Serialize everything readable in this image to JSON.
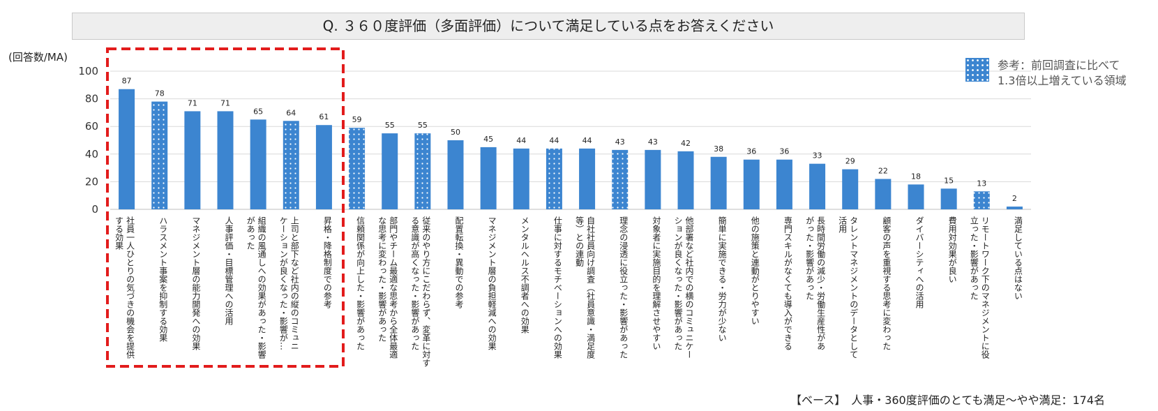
{
  "title": "Q. ３６０度評価（多面評価）について満足している点をお答えください",
  "unit_label": "(回答数/MA)",
  "legend": {
    "line1": "参考：前回調査に比べて",
    "line2": "1.3倍以上増えている領域"
  },
  "base_note": "【ベース】　人事・360度評価のとても満足〜やや満足：174名",
  "colors": {
    "bar": "#3c85d0",
    "highlight_border": "#e21c1c",
    "grid": "#d9d9d9"
  },
  "chart_data": {
    "type": "bar",
    "ylim": [
      0,
      100
    ],
    "yticks": [
      0,
      20,
      40,
      60,
      80,
      100
    ],
    "grid": true,
    "categories": [
      [
        "社員一人ひとりの気づきの機会を提供",
        "する効果"
      ],
      [
        "ハラスメント事案を抑制する効果"
      ],
      [
        "マネジメント層の能力開発への効果"
      ],
      [
        "人事評価・目標管理への活用"
      ],
      [
        "組織の風通しへの効果があった・影響",
        "があった"
      ],
      [
        "上司と部下など社内の縦のコミュニ",
        "ケーションが良くなった・影響が…"
      ],
      [
        "昇格・降格制度での参考"
      ],
      [
        "信頼関係が向上した・影響があった"
      ],
      [
        "部門やチーム最適な思考から全体最適",
        "な思考に変わった・影響があった"
      ],
      [
        "従来のやり方にこだわらず、変革に対す",
        "る意識が高くなった・影響があった"
      ],
      [
        "配置転換・異動での参考"
      ],
      [
        "マネジメント層の負担軽減への効果"
      ],
      [
        "メンタルヘルス不調者への効果"
      ],
      [
        "仕事に対するモチベーションへの効果"
      ],
      [
        "自社社員向け調査（社員意識・満足度",
        "等）との連動"
      ],
      [
        "理念の浸透に役立った・影響があった"
      ],
      [
        "対象者に実施目的を理解させやすい"
      ],
      [
        "他部署など社内での横のコミュニケー",
        "ションが良くなった・影響があった"
      ],
      [
        "簡単に実施できる・労力が少ない"
      ],
      [
        "他の施策と連動がとりやすい"
      ],
      [
        "専門スキルがなくても導入ができる"
      ],
      [
        "長時間労働の減少・労働生産性があ",
        "がった・影響があった"
      ],
      [
        "タレントマネジメントのデータとして",
        "活用"
      ],
      [
        "顧客の声を重視する思考に変わった"
      ],
      [
        "ダイバーシティへの活用"
      ],
      [
        "費用対効果が良い"
      ],
      [
        "リモートワーク下のマネジメントに役",
        "立った・影響があった"
      ],
      [
        "満足している点はない"
      ]
    ],
    "values": [
      87,
      78,
      71,
      71,
      65,
      64,
      61,
      59,
      55,
      55,
      50,
      45,
      44,
      44,
      44,
      43,
      43,
      42,
      38,
      36,
      36,
      33,
      29,
      22,
      18,
      15,
      13,
      2
    ],
    "dotted": [
      false,
      true,
      false,
      false,
      false,
      true,
      false,
      true,
      false,
      true,
      false,
      false,
      false,
      true,
      false,
      true,
      false,
      false,
      false,
      false,
      false,
      false,
      false,
      false,
      false,
      false,
      true,
      false
    ],
    "highlighted_range": [
      0,
      6
    ]
  }
}
